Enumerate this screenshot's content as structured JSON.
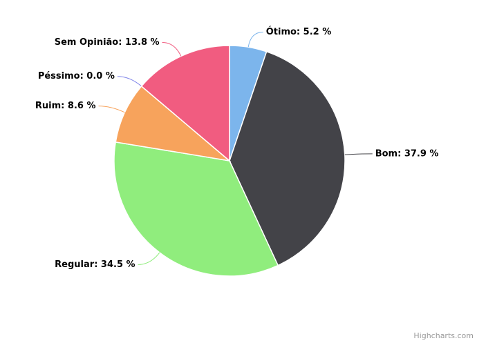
{
  "chart_data": {
    "type": "pie",
    "categories": [
      "Ótimo",
      "Bom",
      "Regular",
      "Ruim",
      "Péssimo",
      "Sem Opinião"
    ],
    "values": [
      5.2,
      37.9,
      34.5,
      8.6,
      0.0,
      13.8
    ],
    "value_labels": [
      "Ótimo: 5.2 %",
      "Bom: 37.9 %",
      "Regular: 34.5 %",
      "Ruim: 8.6 %",
      "Péssimo: 0.0 %",
      "Sem Opinião: 13.8 %"
    ],
    "colors": [
      "#7cb5ec",
      "#434348",
      "#90ed7d",
      "#f7a35c",
      "#8085e9",
      "#f15c80"
    ],
    "credits": "Highcharts.com"
  }
}
